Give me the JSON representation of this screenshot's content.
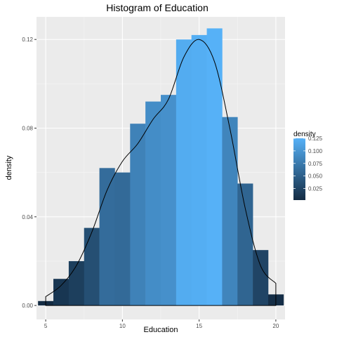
{
  "chart_data": {
    "type": "bar",
    "title": "Histogram of Education",
    "xlabel": "Education",
    "ylabel": "density",
    "xlim": [
      4.4,
      20.6
    ],
    "ylim": [
      -0.0063,
      0.1302
    ],
    "x_ticks": [
      5,
      10,
      15,
      20
    ],
    "x_tick_labels": [
      "5",
      "10",
      "15",
      "20"
    ],
    "y_ticks": [
      0.0,
      0.04,
      0.08,
      0.12
    ],
    "y_tick_labels": [
      "0.00",
      "0.04",
      "0.08",
      "0.12"
    ],
    "bin_width": 1,
    "bins": [
      {
        "x": 5,
        "density": 0.002
      },
      {
        "x": 6,
        "density": 0.012
      },
      {
        "x": 7,
        "density": 0.02
      },
      {
        "x": 8,
        "density": 0.035
      },
      {
        "x": 9,
        "density": 0.062
      },
      {
        "x": 10,
        "density": 0.06
      },
      {
        "x": 11,
        "density": 0.082
      },
      {
        "x": 12,
        "density": 0.092
      },
      {
        "x": 13,
        "density": 0.095
      },
      {
        "x": 14,
        "density": 0.12
      },
      {
        "x": 15,
        "density": 0.122
      },
      {
        "x": 16,
        "density": 0.125
      },
      {
        "x": 17,
        "density": 0.085
      },
      {
        "x": 18,
        "density": 0.055
      },
      {
        "x": 19,
        "density": 0.025
      },
      {
        "x": 20,
        "density": 0.005
      }
    ],
    "density_curve": [
      [
        5,
        0.004
      ],
      [
        6,
        0.009
      ],
      [
        7,
        0.018
      ],
      [
        8,
        0.033
      ],
      [
        9,
        0.052
      ],
      [
        10,
        0.065
      ],
      [
        11,
        0.073
      ],
      [
        12,
        0.084
      ],
      [
        13,
        0.093
      ],
      [
        14,
        0.112
      ],
      [
        15,
        0.12
      ],
      [
        16,
        0.11
      ],
      [
        17,
        0.08
      ],
      [
        18,
        0.044
      ],
      [
        19,
        0.018
      ],
      [
        20,
        0.01
      ]
    ],
    "legend": {
      "title": "density",
      "placement": "right",
      "range": [
        0.002,
        0.125
      ],
      "labels": [
        "0.125",
        "0.100",
        "0.075",
        "0.050",
        "0.025"
      ],
      "values": [
        0.125,
        0.1,
        0.075,
        0.05,
        0.025
      ]
    },
    "colors": {
      "low": "#132B43",
      "high": "#56B1F7",
      "panel_bg": "#EBEBEB",
      "grid_major": "#FFFFFF",
      "grid_minor": "#F5F5F5",
      "curve": "#000000"
    },
    "grid": true
  }
}
